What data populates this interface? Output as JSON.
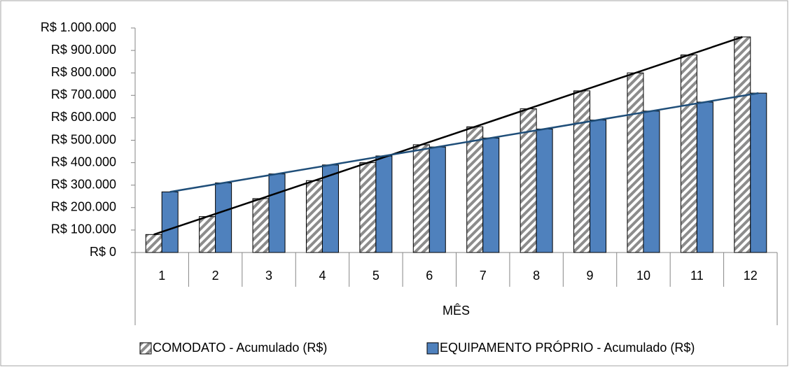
{
  "chart_data": {
    "type": "bar",
    "x_label": "MÊS",
    "categories": [
      "1",
      "2",
      "3",
      "4",
      "5",
      "6",
      "7",
      "8",
      "9",
      "10",
      "11",
      "12"
    ],
    "series": [
      {
        "name": "COMODATO - Acumulado (R$)",
        "color": "hatch",
        "trendline_color": "#000000",
        "values": [
          80000,
          160000,
          240000,
          320000,
          400000,
          480000,
          560000,
          640000,
          720000,
          800000,
          880000,
          960000
        ]
      },
      {
        "name": "EQUIPAMENTO PRÓPRIO - Acumulado (R$)",
        "color": "#4f81bd",
        "trendline_color": "#1f4e79",
        "values": [
          270000,
          310000,
          350000,
          390000,
          430000,
          470000,
          510000,
          550000,
          590000,
          630000,
          670000,
          710000
        ]
      }
    ],
    "ylim": [
      0,
      1000000
    ],
    "yticks": [
      {
        "value": 0,
        "label": "R$ 0"
      },
      {
        "value": 100000,
        "label": "R$ 100.000"
      },
      {
        "value": 200000,
        "label": "R$ 200.000"
      },
      {
        "value": 300000,
        "label": "R$ 300.000"
      },
      {
        "value": 400000,
        "label": "R$ 400.000"
      },
      {
        "value": 500000,
        "label": "R$ 500.000"
      },
      {
        "value": 600000,
        "label": "R$ 600.000"
      },
      {
        "value": 700000,
        "label": "R$ 700.000"
      },
      {
        "value": 800000,
        "label": "R$ 800.000"
      },
      {
        "value": 900000,
        "label": "R$ 900.000"
      },
      {
        "value": 1000000,
        "label": "R$ 1.000.000"
      }
    ],
    "trendline": true,
    "grid": false,
    "legend": "bottom"
  }
}
